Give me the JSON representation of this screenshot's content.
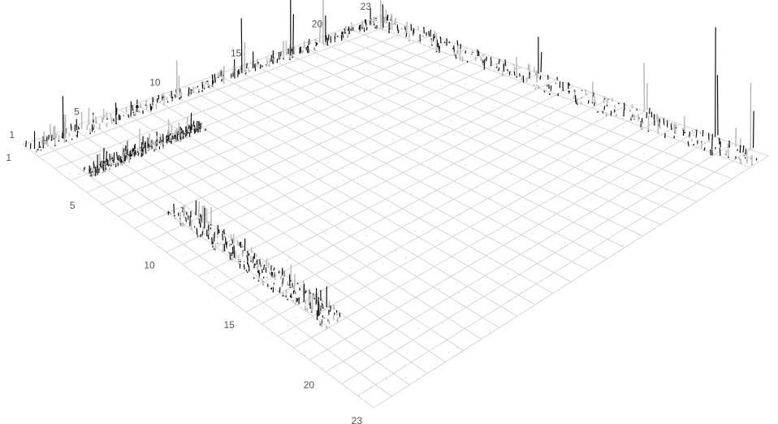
{
  "chart_data": {
    "type": "surface",
    "title": "",
    "xlabel": "",
    "ylabel": "",
    "zlabel": "",
    "grid": true,
    "legend": "none",
    "x_axis": {
      "range": [
        1,
        23
      ],
      "tick_labels": [
        "1",
        "5",
        "10",
        "15",
        "20",
        "23"
      ],
      "tick_values": [
        1,
        5,
        10,
        15,
        20,
        23
      ]
    },
    "y_axis": {
      "range": [
        1,
        23
      ],
      "tick_labels": [
        "1",
        "5",
        "10",
        "15",
        "20",
        "23"
      ],
      "tick_values": [
        1,
        5,
        10,
        15,
        20,
        23
      ]
    },
    "grid_divisions": 22,
    "colors": {
      "grid": "#d6d6d6",
      "peak_dark": "#111111",
      "peak_light": "#bdbdbd"
    },
    "peak_bands": [
      {
        "orientation": "along-x",
        "at_y": 1.5,
        "from_x": 1,
        "to_x": 23
      },
      {
        "orientation": "along-y",
        "at_x": 23,
        "from_y": 1,
        "to_y": 23
      },
      {
        "orientation": "along-x",
        "at_y": 4,
        "from_x": 2,
        "to_x": 9
      },
      {
        "orientation": "along-y",
        "at_x": 4,
        "from_y": 8,
        "to_y": 18
      }
    ],
    "notable_peaks": [
      {
        "x": 3,
        "y": 1.5,
        "height": 0.35
      },
      {
        "x": 10,
        "y": 1.5,
        "height": 0.3
      },
      {
        "x": 14,
        "y": 1.5,
        "height": 0.45
      },
      {
        "x": 17,
        "y": 1.5,
        "height": 0.6
      },
      {
        "x": 19,
        "y": 1.5,
        "height": 0.4
      },
      {
        "x": 22,
        "y": 2,
        "height": 0.35
      },
      {
        "x": 23,
        "y": 20,
        "height": 0.9
      },
      {
        "x": 23,
        "y": 22,
        "height": 0.55
      },
      {
        "x": 23,
        "y": 16,
        "height": 0.4
      },
      {
        "x": 23,
        "y": 10,
        "height": 0.3
      }
    ]
  }
}
